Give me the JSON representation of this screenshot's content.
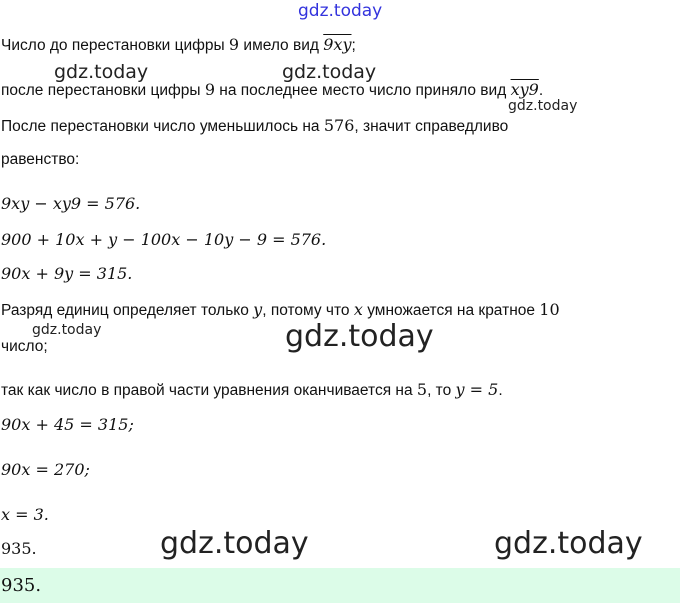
{
  "watermark": "gdz.today",
  "colors": {
    "watermark_top": "#3333dd",
    "answer_band": "#dcfce8"
  },
  "lines": {
    "l1_a": "Число до перестановки цифры ",
    "l1_m1": "9",
    "l1_b": " имело вид ",
    "l1_m2": "9xy",
    "l1_c": ";",
    "l2_a": "после перестановки цифры ",
    "l2_m1": "9",
    "l2_b": " на последнее место число приняло вид ",
    "l2_m2": "xy9",
    "l2_c": ".",
    "l3_a": "После перестановки число уменьшилось на ",
    "l3_m1": "576",
    "l3_b": ", значит справедливо",
    "l4": "равенство:",
    "eq1": "9xy − xy9 = 576.",
    "eq2": "900 + 10x + y − 100x − 10y − 9 = 576.",
    "eq3": "90x + 9y = 315.",
    "l5_a": "Разряд единиц определяет только ",
    "l5_m1": "y",
    "l5_b": ", потому что ",
    "l5_m2": "x",
    "l5_c": " умножается на кратное ",
    "l5_m3": "10",
    "l6": "число;",
    "l7_a": "так как число в правой части уравнения оканчивается на ",
    "l7_m1": "5",
    "l7_b": ", то ",
    "l7_m2": "y = 5",
    "l7_c": ".",
    "eq4": "90x + 45 = 315;",
    "eq5": "90x = 270;",
    "eq6": "x = 3.",
    "result": "935.",
    "answer": "935."
  }
}
